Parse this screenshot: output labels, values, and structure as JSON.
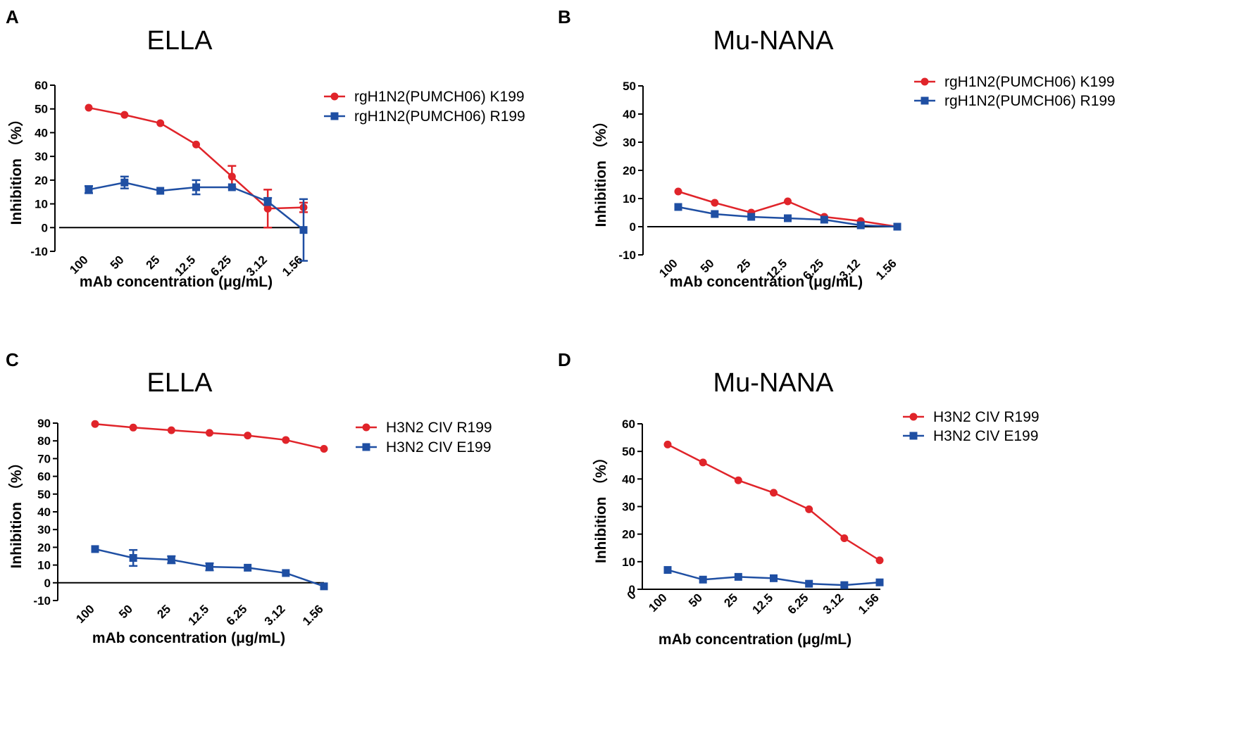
{
  "colors": {
    "red": "#e0242a",
    "blue": "#1f4fa3",
    "axis": "#000000"
  },
  "chart_data": [
    {
      "panel": "A",
      "type": "line",
      "title": "ELLA",
      "xlabel": "mAb concentration (μg/mL)",
      "ylabel": "Inhibition （%）",
      "ylim": [
        -10,
        60
      ],
      "yticks": [
        "-10",
        "0",
        "10",
        "20",
        "30",
        "40",
        "50",
        "60"
      ],
      "categories": [
        "100",
        "50",
        "25",
        "12.5",
        "6.25",
        "3.12",
        "1.56"
      ],
      "legend_position": "top-right",
      "series": [
        {
          "name": "rgH1N2(PUMCH06) K199",
          "color": "#e0242a",
          "marker": "circle",
          "values": [
            50.5,
            47.5,
            44,
            35,
            21.5,
            8,
            8.5
          ],
          "errors": [
            0.5,
            0.5,
            0.5,
            0.5,
            4.5,
            8,
            2
          ]
        },
        {
          "name": "rgH1N2(PUMCH06) R199",
          "color": "#1f4fa3",
          "marker": "square",
          "values": [
            16,
            19,
            15.5,
            17,
            17,
            11,
            -1
          ],
          "errors": [
            1.5,
            2.5,
            0.5,
            3,
            0.5,
            1.5,
            13
          ]
        }
      ]
    },
    {
      "panel": "B",
      "type": "line",
      "title": "Mu-NANA",
      "xlabel": "mAb concentration (μg/mL)",
      "ylabel": "Inhibition （%）",
      "ylim": [
        -10,
        50
      ],
      "yticks": [
        "-10",
        "0",
        "10",
        "20",
        "30",
        "40",
        "50"
      ],
      "categories": [
        "100",
        "50",
        "25",
        "12.5",
        "6.25",
        "3.12",
        "1.56"
      ],
      "legend_position": "top-right",
      "series": [
        {
          "name": "rgH1N2(PUMCH06) K199",
          "color": "#e0242a",
          "marker": "circle",
          "values": [
            12.5,
            8.5,
            5,
            9,
            3.5,
            2,
            0
          ]
        },
        {
          "name": "rgH1N2(PUMCH06) R199",
          "color": "#1f4fa3",
          "marker": "square",
          "values": [
            7,
            4.5,
            3.5,
            3,
            2.5,
            0.5,
            0
          ]
        }
      ]
    },
    {
      "panel": "C",
      "type": "line",
      "title": "ELLA",
      "xlabel": "mAb concentration (μg/mL)",
      "ylabel": "Inhibition （%）",
      "ylim": [
        -10,
        90
      ],
      "yticks": [
        "-10",
        "0",
        "10",
        "20",
        "30",
        "40",
        "50",
        "60",
        "70",
        "80",
        "90"
      ],
      "categories": [
        "100",
        "50",
        "25",
        "12.5",
        "6.25",
        "3.12",
        "1.56"
      ],
      "legend_position": "top-right",
      "series": [
        {
          "name": "H3N2 CIV R199",
          "color": "#e0242a",
          "marker": "circle",
          "values": [
            89.5,
            87.5,
            86,
            84.5,
            83,
            80.5,
            75.5
          ]
        },
        {
          "name": "H3N2 CIV E199",
          "color": "#1f4fa3",
          "marker": "square",
          "values": [
            19,
            14,
            13,
            9,
            8.5,
            5.5,
            -2
          ],
          "errors": [
            0.5,
            4.5,
            2,
            2,
            0.5,
            0.5,
            0.5
          ]
        }
      ]
    },
    {
      "panel": "D",
      "type": "line",
      "title": "Mu-NANA",
      "xlabel": "mAb concentration (μg/mL)",
      "ylabel": "Inhibition （%）",
      "ylim": [
        0,
        60
      ],
      "yticks": [
        "0",
        "10",
        "20",
        "30",
        "40",
        "50",
        "60"
      ],
      "xticks": [
        "0",
        "100",
        "50",
        "25",
        "12.5",
        "6.25",
        "3.12",
        "1.56"
      ],
      "categories": [
        "100",
        "50",
        "25",
        "12.5",
        "6.25",
        "3.12",
        "1.56"
      ],
      "legend_position": "top-right",
      "series": [
        {
          "name": "H3N2 CIV R199",
          "color": "#e0242a",
          "marker": "circle",
          "values": [
            52.5,
            46,
            39.5,
            35,
            29,
            18.5,
            10.5
          ]
        },
        {
          "name": "H3N2 CIV E199",
          "color": "#1f4fa3",
          "marker": "square",
          "values": [
            7,
            3.5,
            4.5,
            4,
            2,
            1.5,
            2.5
          ]
        }
      ]
    }
  ]
}
